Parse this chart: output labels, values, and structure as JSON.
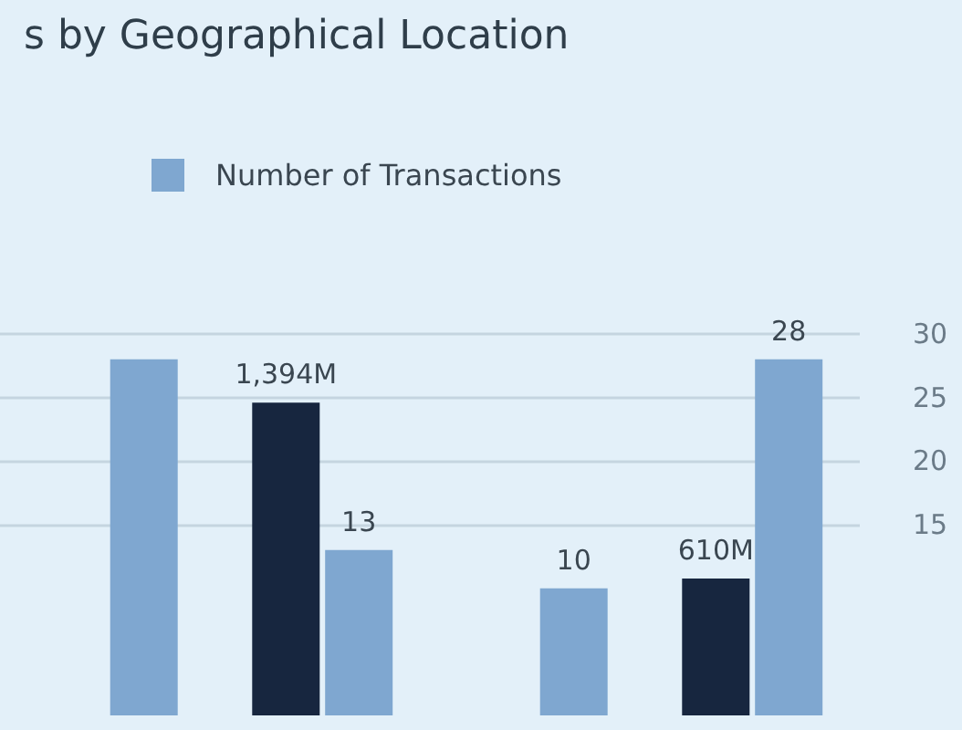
{
  "chart_data": {
    "type": "bar",
    "title": "s by Geographical Location",
    "categories": [
      null,
      null,
      null,
      null
    ],
    "series": [
      {
        "color": "#17263f",
        "values": [
          null,
          1394,
          null,
          610
        ],
        "value_labels": [
          null,
          "1,394M",
          null,
          "610M"
        ]
      },
      {
        "name": "Number of Transactions",
        "color": "#7fa7d0",
        "axis": "y2",
        "values": [
          28,
          13,
          10,
          28
        ],
        "value_labels": [
          null,
          "13",
          "10",
          "28"
        ]
      }
    ],
    "ylim": [
      0,
      1700
    ],
    "y2lim": [
      0,
      30
    ],
    "y2ticks": [
      15,
      20,
      25,
      30
    ],
    "grid": "y2",
    "legend": "top"
  }
}
